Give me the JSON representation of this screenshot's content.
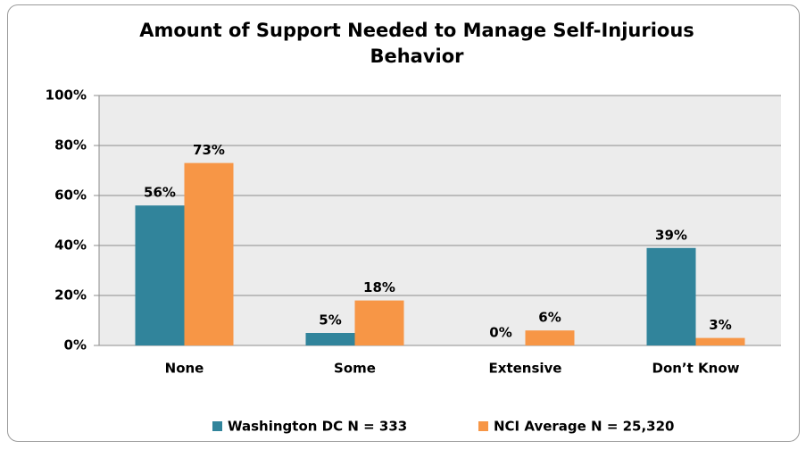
{
  "chart_data": {
    "type": "bar",
    "title": "Amount of Support Needed to Manage Self-Injurious Behavior",
    "categories": [
      "None",
      "Some",
      "Extensive",
      "Don’t Know"
    ],
    "series": [
      {
        "name": "Washington DC N = 333",
        "color": "#31849b",
        "values": [
          56,
          5,
          0,
          39
        ],
        "value_labels": [
          "56%",
          "5%",
          "0%",
          "39%"
        ]
      },
      {
        "name": "NCI Average N = 25,320",
        "color": "#f79646",
        "values": [
          73,
          18,
          6,
          3
        ],
        "value_labels": [
          "73%",
          "18%",
          "6%",
          "3%"
        ]
      }
    ],
    "ylim": [
      0,
      100
    ],
    "yticks": [
      {
        "value": 0,
        "label": "0%"
      },
      {
        "value": 20,
        "label": "20%"
      },
      {
        "value": 40,
        "label": "40%"
      },
      {
        "value": 60,
        "label": "60%"
      },
      {
        "value": 80,
        "label": "80%"
      },
      {
        "value": 100,
        "label": "100%"
      }
    ],
    "grid": true,
    "legend": "bottom"
  }
}
